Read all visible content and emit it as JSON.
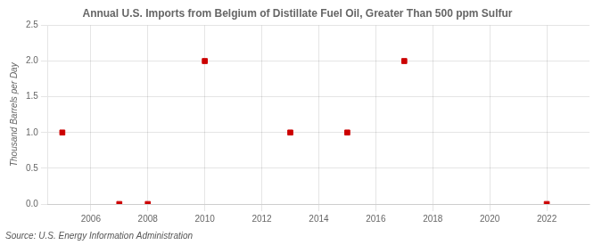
{
  "chart_data": {
    "type": "scatter",
    "title": "Annual U.S. Imports from Belgium of Distillate Fuel Oil, Greater Than 500 ppm Sulfur",
    "y_label": "Thousand Barrels per Day",
    "source": "Source: U.S. Energy Information Administration",
    "x": [
      2005,
      2007,
      2008,
      2010,
      2013,
      2015,
      2017,
      2022
    ],
    "values": [
      1.0,
      0.0,
      0.0,
      2.0,
      1.0,
      1.0,
      2.0,
      0.0
    ],
    "color": "#cc0000",
    "marker": "square",
    "xlim": [
      2004.5,
      2023.5
    ],
    "ylim": [
      0.0,
      2.5
    ],
    "xticks": [
      2006,
      2008,
      2010,
      2012,
      2014,
      2016,
      2018,
      2020,
      2022
    ],
    "yticks": [
      {
        "value": 0.0,
        "label": "0.0"
      },
      0.5,
      {
        "value": 1.0,
        "label": "1.0"
      },
      1.5,
      {
        "value": 2.0,
        "label": "2.0"
      },
      2.5
    ],
    "grid": true
  }
}
